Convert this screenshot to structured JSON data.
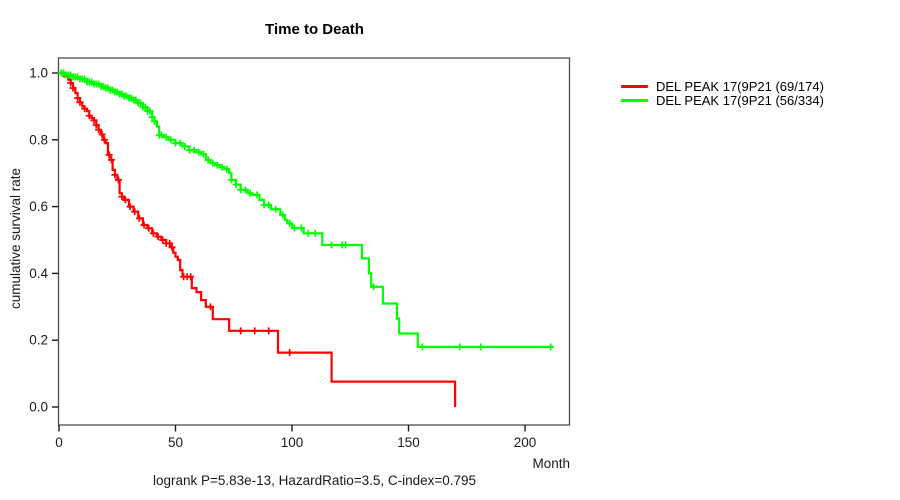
{
  "chart_data": {
    "type": "line",
    "subtype": "kaplan-meier-step-curves",
    "title": "Time to Death",
    "xlabel": "Month",
    "ylabel": "cumulative survival rate",
    "annotation": "logrank P=5.83e-13, HazardRatio=3.5, C-index=0.795",
    "x_ticks": [
      0,
      50,
      100,
      150,
      200
    ],
    "y_ticks": [
      0.0,
      0.2,
      0.4,
      0.6,
      0.8,
      1.0
    ],
    "xlim": [
      0,
      220
    ],
    "ylim": [
      0,
      1
    ],
    "grid": false,
    "legend_position": "right-outside",
    "series": [
      {
        "name": "DEL PEAK 17(9P21 (69/174)",
        "color": "#ff0000",
        "events_total": "69/174",
        "steps": [
          [
            0,
            1.0
          ],
          [
            2,
            0.99
          ],
          [
            4,
            0.98
          ],
          [
            5,
            0.97
          ],
          [
            6,
            0.955
          ],
          [
            7,
            0.94
          ],
          [
            8,
            0.925
          ],
          [
            9,
            0.912
          ],
          [
            10,
            0.9
          ],
          [
            11,
            0.893
          ],
          [
            12,
            0.886
          ],
          [
            13,
            0.872
          ],
          [
            14,
            0.865
          ],
          [
            15,
            0.858
          ],
          [
            16,
            0.844
          ],
          [
            17,
            0.83
          ],
          [
            18,
            0.816
          ],
          [
            19,
            0.8
          ],
          [
            20,
            0.79
          ],
          [
            21,
            0.755
          ],
          [
            22,
            0.74
          ],
          [
            23,
            0.71
          ],
          [
            24,
            0.695
          ],
          [
            25,
            0.68
          ],
          [
            26,
            0.64
          ],
          [
            27,
            0.63
          ],
          [
            28,
            0.62
          ],
          [
            30,
            0.6
          ],
          [
            32,
            0.585
          ],
          [
            34,
            0.565
          ],
          [
            36,
            0.545
          ],
          [
            38,
            0.535
          ],
          [
            40,
            0.52
          ],
          [
            42,
            0.51
          ],
          [
            44,
            0.5
          ],
          [
            46,
            0.49
          ],
          [
            48,
            0.478
          ],
          [
            49,
            0.462
          ],
          [
            50,
            0.45
          ],
          [
            51,
            0.44
          ],
          [
            52,
            0.41
          ],
          [
            53,
            0.39
          ],
          [
            57,
            0.356
          ],
          [
            59,
            0.344
          ],
          [
            61,
            0.32
          ],
          [
            63,
            0.3
          ],
          [
            66,
            0.263
          ],
          [
            73,
            0.228
          ],
          [
            94,
            0.163
          ],
          [
            117,
            0.076
          ],
          [
            170,
            0.0
          ]
        ],
        "censor_times": [
          1,
          5,
          6,
          8,
          9,
          11,
          13,
          15,
          16,
          17,
          18.5,
          19.5,
          21.5,
          22.5,
          24,
          25.5,
          27,
          28.5,
          30.5,
          32.5,
          34.5,
          36.5,
          38.5,
          40.5,
          42.5,
          44.5,
          46,
          47.5,
          48.5,
          53.5,
          55,
          56.5,
          65,
          78,
          84,
          90,
          99
        ],
        "end_time": 170
      },
      {
        "name": "DEL PEAK 17(9P21 (56/334)",
        "color": "#00ff00",
        "events_total": "56/334",
        "steps": [
          [
            0,
            1.0
          ],
          [
            3,
            0.994
          ],
          [
            6,
            0.988
          ],
          [
            9,
            0.982
          ],
          [
            12,
            0.973
          ],
          [
            15,
            0.967
          ],
          [
            18,
            0.96
          ],
          [
            20,
            0.955
          ],
          [
            22,
            0.949
          ],
          [
            24,
            0.943
          ],
          [
            26,
            0.937
          ],
          [
            28,
            0.931
          ],
          [
            30,
            0.925
          ],
          [
            32,
            0.919
          ],
          [
            34,
            0.91
          ],
          [
            36,
            0.898
          ],
          [
            38,
            0.886
          ],
          [
            40,
            0.868
          ],
          [
            41,
            0.855
          ],
          [
            42,
            0.84
          ],
          [
            43,
            0.814
          ],
          [
            45,
            0.808
          ],
          [
            47,
            0.8
          ],
          [
            50,
            0.79
          ],
          [
            53,
            0.78
          ],
          [
            56,
            0.769
          ],
          [
            59,
            0.763
          ],
          [
            61,
            0.757
          ],
          [
            63,
            0.74
          ],
          [
            65,
            0.73
          ],
          [
            67,
            0.724
          ],
          [
            69,
            0.718
          ],
          [
            71,
            0.712
          ],
          [
            73,
            0.7
          ],
          [
            74,
            0.68
          ],
          [
            76,
            0.666
          ],
          [
            78,
            0.65
          ],
          [
            81,
            0.64
          ],
          [
            83,
            0.635
          ],
          [
            86,
            0.62
          ],
          [
            88,
            0.605
          ],
          [
            91,
            0.592
          ],
          [
            95,
            0.575
          ],
          [
            97,
            0.56
          ],
          [
            98,
            0.55
          ],
          [
            100,
            0.536
          ],
          [
            105,
            0.52
          ],
          [
            113,
            0.485
          ],
          [
            130,
            0.445
          ],
          [
            133,
            0.4
          ],
          [
            134,
            0.36
          ],
          [
            139,
            0.31
          ],
          [
            145,
            0.265
          ],
          [
            146,
            0.22
          ],
          [
            154,
            0.18
          ]
        ],
        "censor_times": [
          1,
          2,
          3,
          4,
          5,
          6,
          7,
          8,
          9,
          10,
          11,
          12,
          13,
          14,
          15,
          16,
          17,
          18,
          19,
          20,
          21,
          22,
          23,
          24,
          25,
          26,
          27,
          28,
          29,
          30,
          31,
          32,
          33,
          34,
          35,
          36,
          37,
          38,
          39,
          40,
          41,
          43,
          44,
          46,
          48,
          50,
          52,
          54,
          56,
          58,
          60,
          62,
          64,
          66,
          68,
          70,
          72,
          74,
          76,
          78,
          80,
          82,
          85,
          88,
          90,
          93,
          96,
          99,
          101,
          104,
          107,
          110,
          117,
          121.5,
          123,
          135,
          156,
          172,
          181,
          211
        ],
        "end_time": 212
      }
    ]
  }
}
